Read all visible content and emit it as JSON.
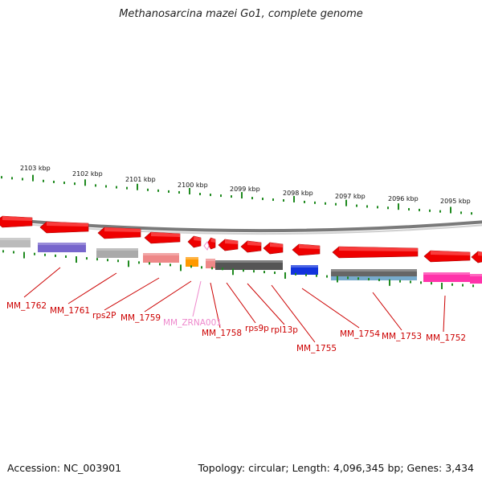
{
  "title": "Methanosarcina mazei Go1, complete genome",
  "footer": {
    "accession": "Accession: NC_003901",
    "summary": "Topology: circular; Length: 4,096,345 bp; Genes: 3,434"
  },
  "colors": {
    "gene_label": "#cc0000",
    "rna_label": "#ee88cc",
    "tick": "#1f8a1f",
    "backbone": "#888888"
  },
  "kbp_labels": [
    "2103 kbp",
    "2102 kbp",
    "2101 kbp",
    "2100 kbp",
    "2099 kbp",
    "2098 kbp",
    "2097 kbp",
    "2096 kbp",
    "2095 kbp"
  ],
  "gene_labels": [
    {
      "text": "MM_1762",
      "kind": "gene"
    },
    {
      "text": "MM_1761",
      "kind": "gene"
    },
    {
      "text": "rps2P",
      "kind": "gene"
    },
    {
      "text": "MM_1759",
      "kind": "gene"
    },
    {
      "text": "MM_ZRNA001",
      "kind": "rna"
    },
    {
      "text": "MM_1758",
      "kind": "gene"
    },
    {
      "text": "rps9p",
      "kind": "gene"
    },
    {
      "text": "rpl13p",
      "kind": "gene"
    },
    {
      "text": "MM_1755",
      "kind": "gene"
    },
    {
      "text": "MM_1754",
      "kind": "gene"
    },
    {
      "text": "MM_1753",
      "kind": "gene"
    },
    {
      "text": "MM_1752",
      "kind": "gene"
    }
  ],
  "cog_colors": [
    "#bbbbbb",
    "#7766cc",
    "#aaaaaa",
    "#ee8888",
    "#ff9900",
    "#ee8888",
    "#555555",
    "#1133dd",
    "#666666",
    "#ff33aa"
  ]
}
